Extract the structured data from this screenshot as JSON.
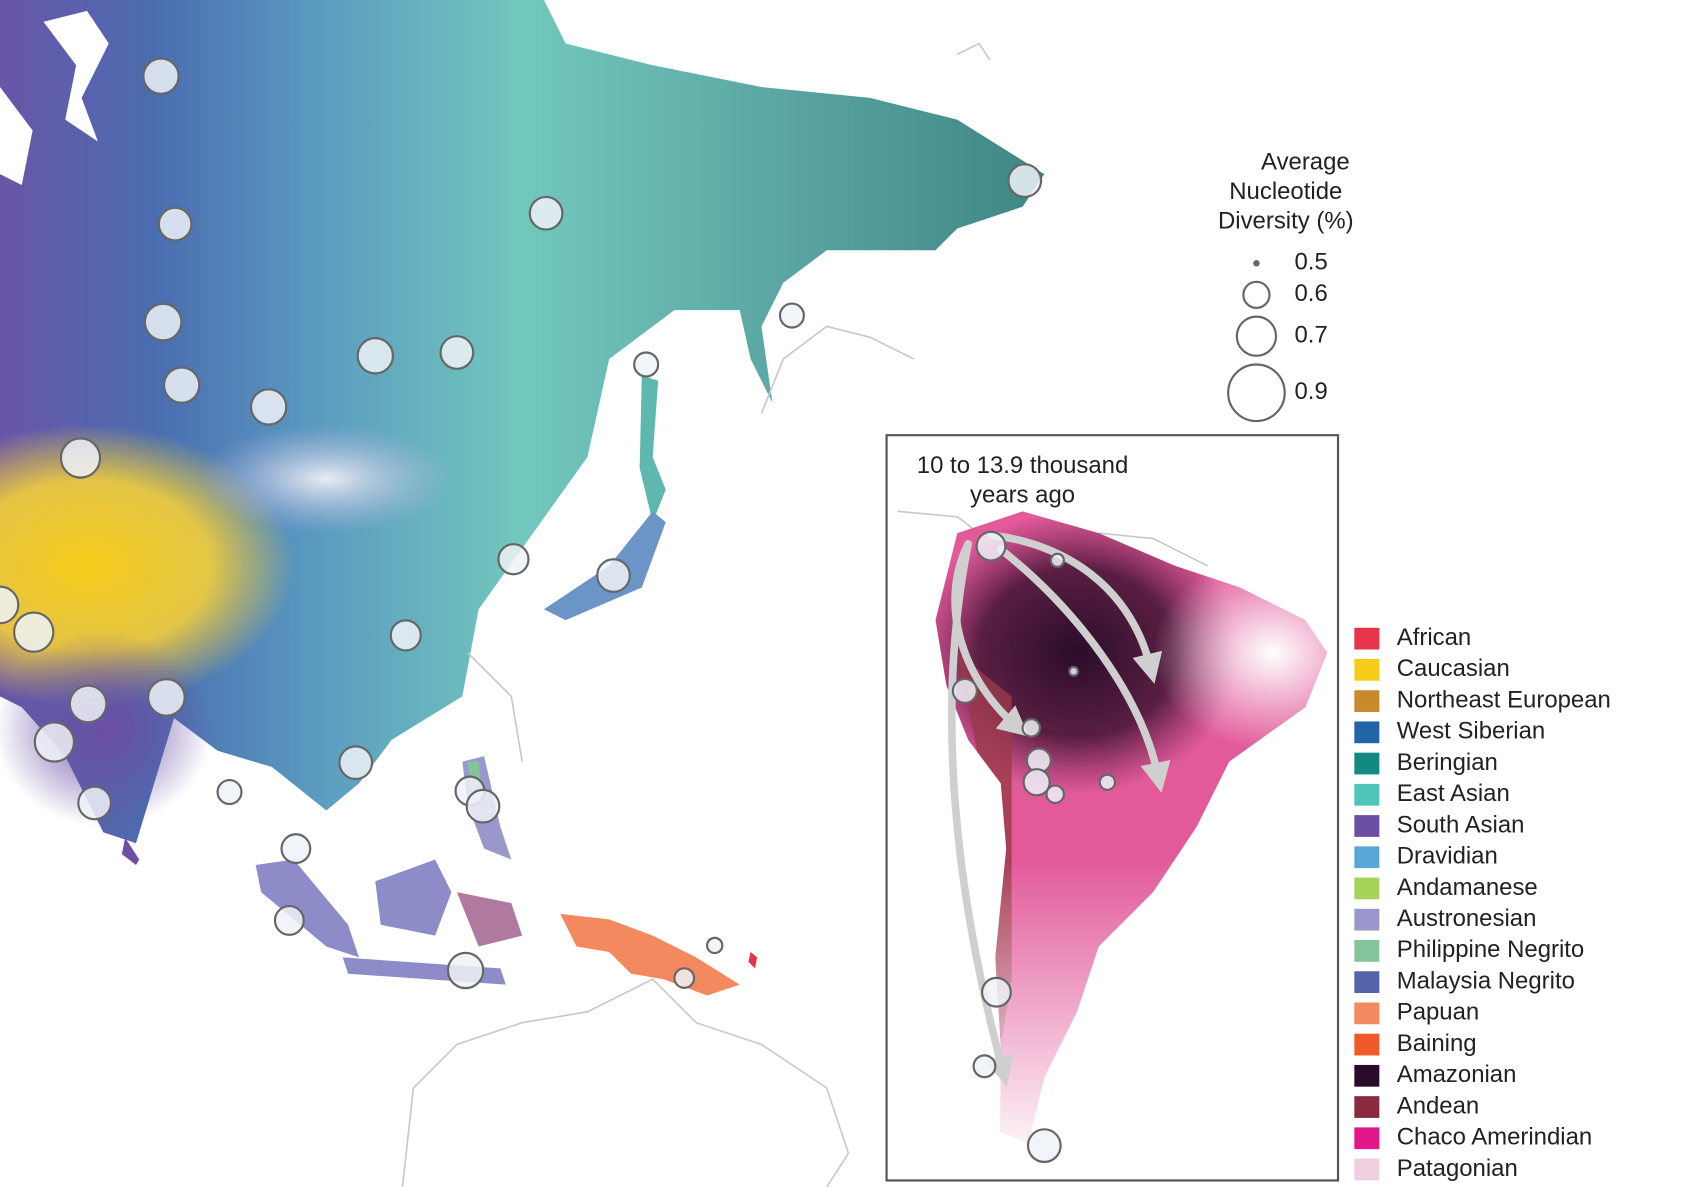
{
  "legend_title": [
    "Average",
    "Nucleotide",
    "Diversity (%)"
  ],
  "size_legend": [
    0.5,
    0.6,
    0.7,
    0.9
  ],
  "inset_title": [
    "10 to 13.9 thousand",
    "years ago"
  ],
  "populations": [
    {
      "name": "African",
      "color": "#e8334a"
    },
    {
      "name": "Caucasian",
      "color": "#f5cc1a"
    },
    {
      "name": "Northeast European",
      "color": "#c98a2e"
    },
    {
      "name": "West Siberian",
      "color": "#2065a8"
    },
    {
      "name": "Beringian",
      "color": "#128a80"
    },
    {
      "name": "East Asian",
      "color": "#4fc4b8"
    },
    {
      "name": "South Asian",
      "color": "#6a4fa5"
    },
    {
      "name": "Dravidian",
      "color": "#5aa6d8"
    },
    {
      "name": "Andamanese",
      "color": "#a6d45a"
    },
    {
      "name": "Austronesian",
      "color": "#9a97cc"
    },
    {
      "name": "Philippine Negrito",
      "color": "#84c49a"
    },
    {
      "name": "Malaysia Negrito",
      "color": "#5563aa"
    },
    {
      "name": "Papuan",
      "color": "#f4895f"
    },
    {
      "name": "Baining",
      "color": "#f05a28"
    },
    {
      "name": "Amazonian",
      "color": "#2a0c2a"
    },
    {
      "name": "Andean",
      "color": "#8a2a3e"
    },
    {
      "name": "Chaco Amerindian",
      "color": "#e2178a"
    },
    {
      "name": "Patagonian",
      "color": "#f0cfe0"
    }
  ],
  "sites": [
    0.67,
    0.65,
    0.65,
    0.68,
    0.67,
    0.65,
    0.67,
    0.67,
    0.7,
    0.68,
    0.7,
    0.63,
    0.63,
    0.65,
    0.68,
    0.68,
    0.7,
    0.65,
    0.59,
    0.65,
    0.62,
    0.62,
    0.65,
    0.62,
    0.67,
    0.57,
    0.55,
    0.65,
    0.59,
    0.59
  ],
  "inset_sites": [
    0.62,
    0.54,
    0.52,
    0.59,
    0.56,
    0.59,
    0.6,
    0.56,
    0.55,
    0.62,
    0.58,
    0.65
  ]
}
